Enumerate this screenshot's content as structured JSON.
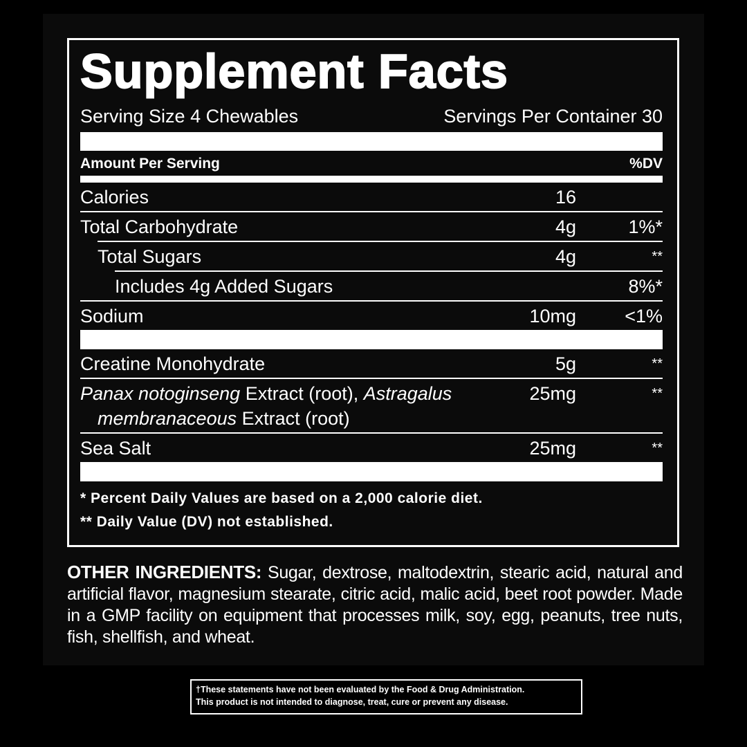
{
  "label": {
    "title": "Supplement Facts",
    "serving_size": "Serving Size 4 Chewables",
    "servings_per_container": "Servings Per Container 30",
    "column_headers": {
      "amount": "Amount Per Serving",
      "dv": "%DV"
    },
    "groups": [
      [
        {
          "name": [
            {
              "text": "Calories"
            }
          ],
          "amount": "16",
          "indent": 0
        },
        {
          "name": [
            {
              "text": "Total Carbohydrate"
            }
          ],
          "amount": "4g",
          "dv": "1%*",
          "indent": 0
        },
        {
          "name": [
            {
              "text": "Total Sugars"
            }
          ],
          "amount": "4g",
          "dv": "**",
          "indent": 1
        },
        {
          "name": [
            {
              "text": "Includes 4g Added Sugars"
            }
          ],
          "dv": "8%*",
          "indent": 2
        },
        {
          "name": [
            {
              "text": "Sodium"
            }
          ],
          "amount": "10mg",
          "dv": "<1%",
          "indent": 0
        }
      ],
      [
        {
          "name": [
            {
              "text": "Creatine Monohydrate"
            }
          ],
          "amount": "5g",
          "dv": "**",
          "indent": 0
        },
        {
          "name": [
            {
              "text": "Panax notoginseng",
              "italic": true
            },
            {
              "text": " Extract (root), "
            },
            {
              "text": "Astragalus",
              "italic": true
            }
          ],
          "name_continued": [
            {
              "text": "membranaceous",
              "italic": true
            },
            {
              "text": " Extract (root)"
            }
          ],
          "amount": "25mg",
          "dv": "**",
          "indent": 0
        },
        {
          "name": [
            {
              "text": "Sea Salt"
            }
          ],
          "amount": "25mg",
          "dv": "**",
          "indent": 0
        }
      ]
    ],
    "footnotes": [
      "* Percent Daily Values are based on a 2,000 calorie diet.",
      "** Daily Value (DV) not established."
    ]
  },
  "other_ingredients": {
    "heading": "OTHER INGREDIENTS:",
    "text": "Sugar, dextrose, maltodextrin, stearic acid, natural and artificial flavor, magnesium stearate, citric acid, malic acid, beet root powder. Made in a GMP facility on equipment that processes milk, soy, egg, peanuts, tree nuts, fish, shellfish, and wheat."
  },
  "disclaimer": [
    "†These statements have not been evaluated by the Food & Drug Administration.",
    "This product is not intended to diagnose, treat, cure or prevent any disease."
  ]
}
